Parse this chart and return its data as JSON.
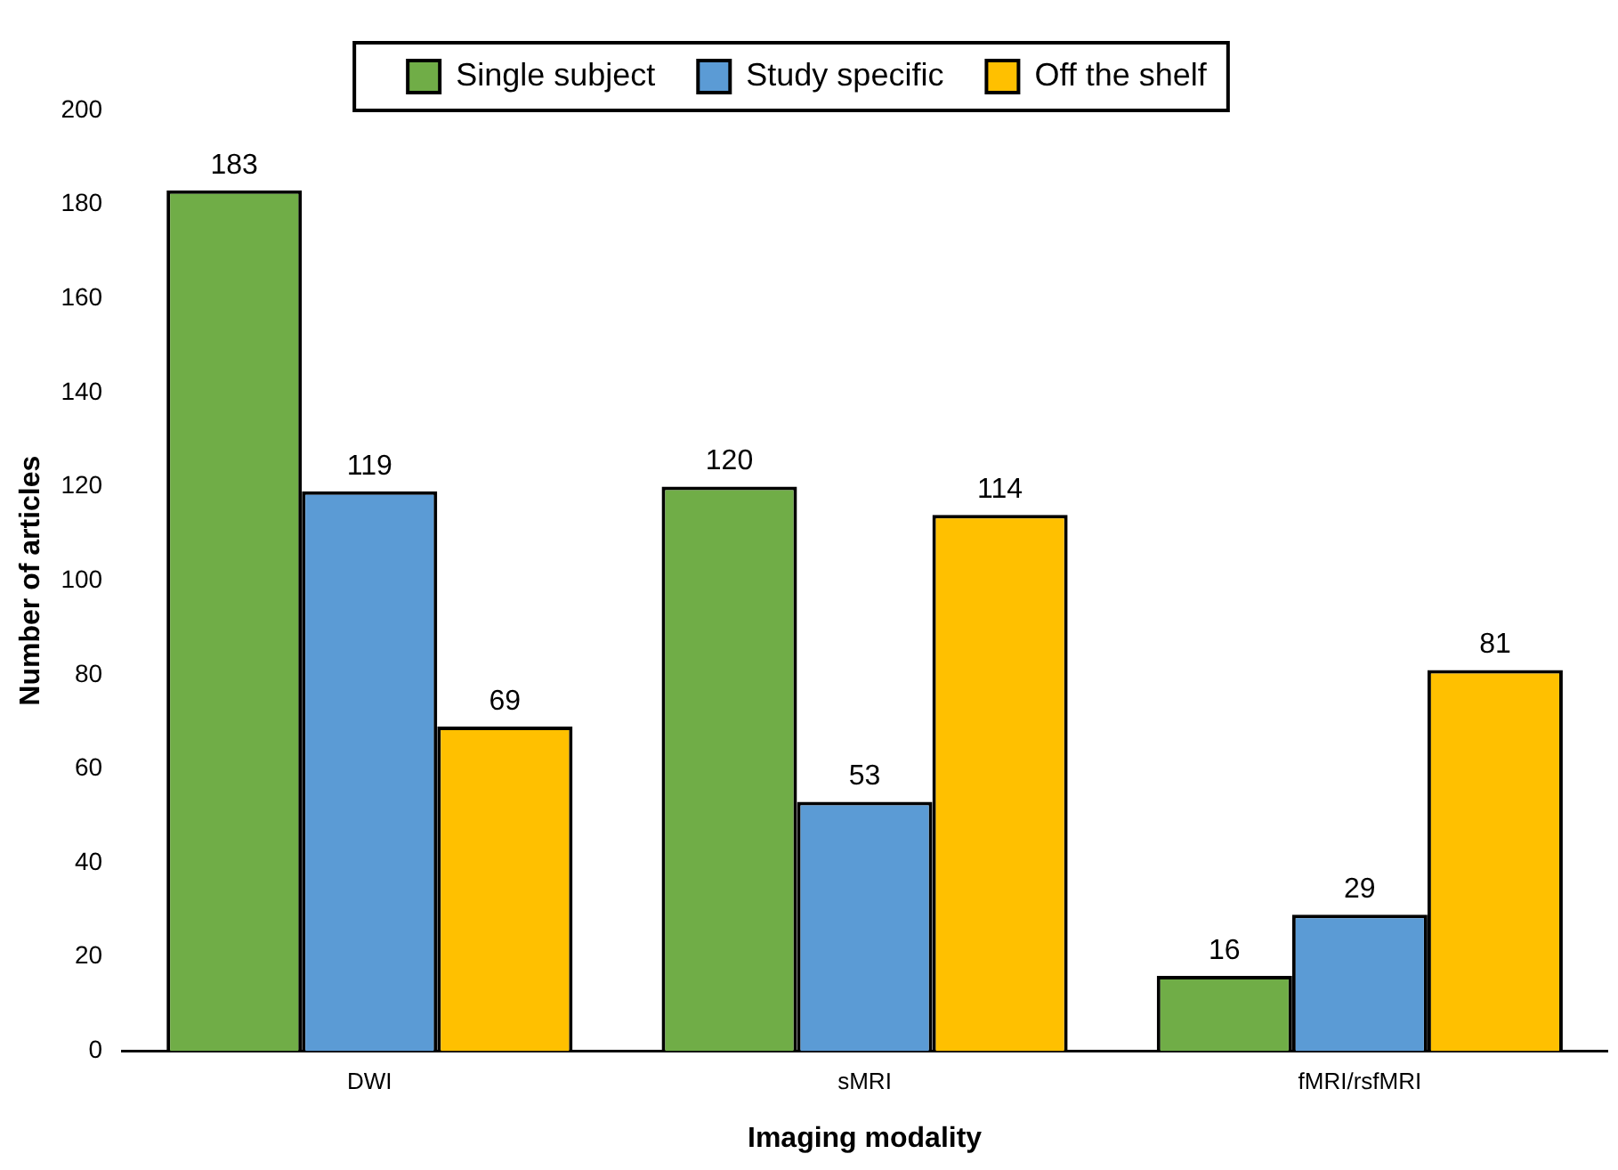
{
  "chart_data": {
    "type": "bar",
    "xlabel": "Imaging modality",
    "ylabel": "Number of articles",
    "categories": [
      "DWI",
      "sMRI",
      "fMRI/rsfMRI"
    ],
    "series": [
      {
        "name": "Single subject",
        "color": "#70ad47",
        "values": [
          183,
          120,
          16
        ]
      },
      {
        "name": "Study specific",
        "color": "#5b9bd5",
        "values": [
          119,
          53,
          29
        ]
      },
      {
        "name": "Off the shelf",
        "color": "#ffc000",
        "values": [
          69,
          114,
          81
        ]
      }
    ],
    "ylim": [
      0,
      200
    ],
    "yticks": [
      0,
      20,
      40,
      60,
      80,
      100,
      120,
      140,
      160,
      180,
      200
    ],
    "grid": false,
    "legend": "top",
    "data_labels": true
  }
}
